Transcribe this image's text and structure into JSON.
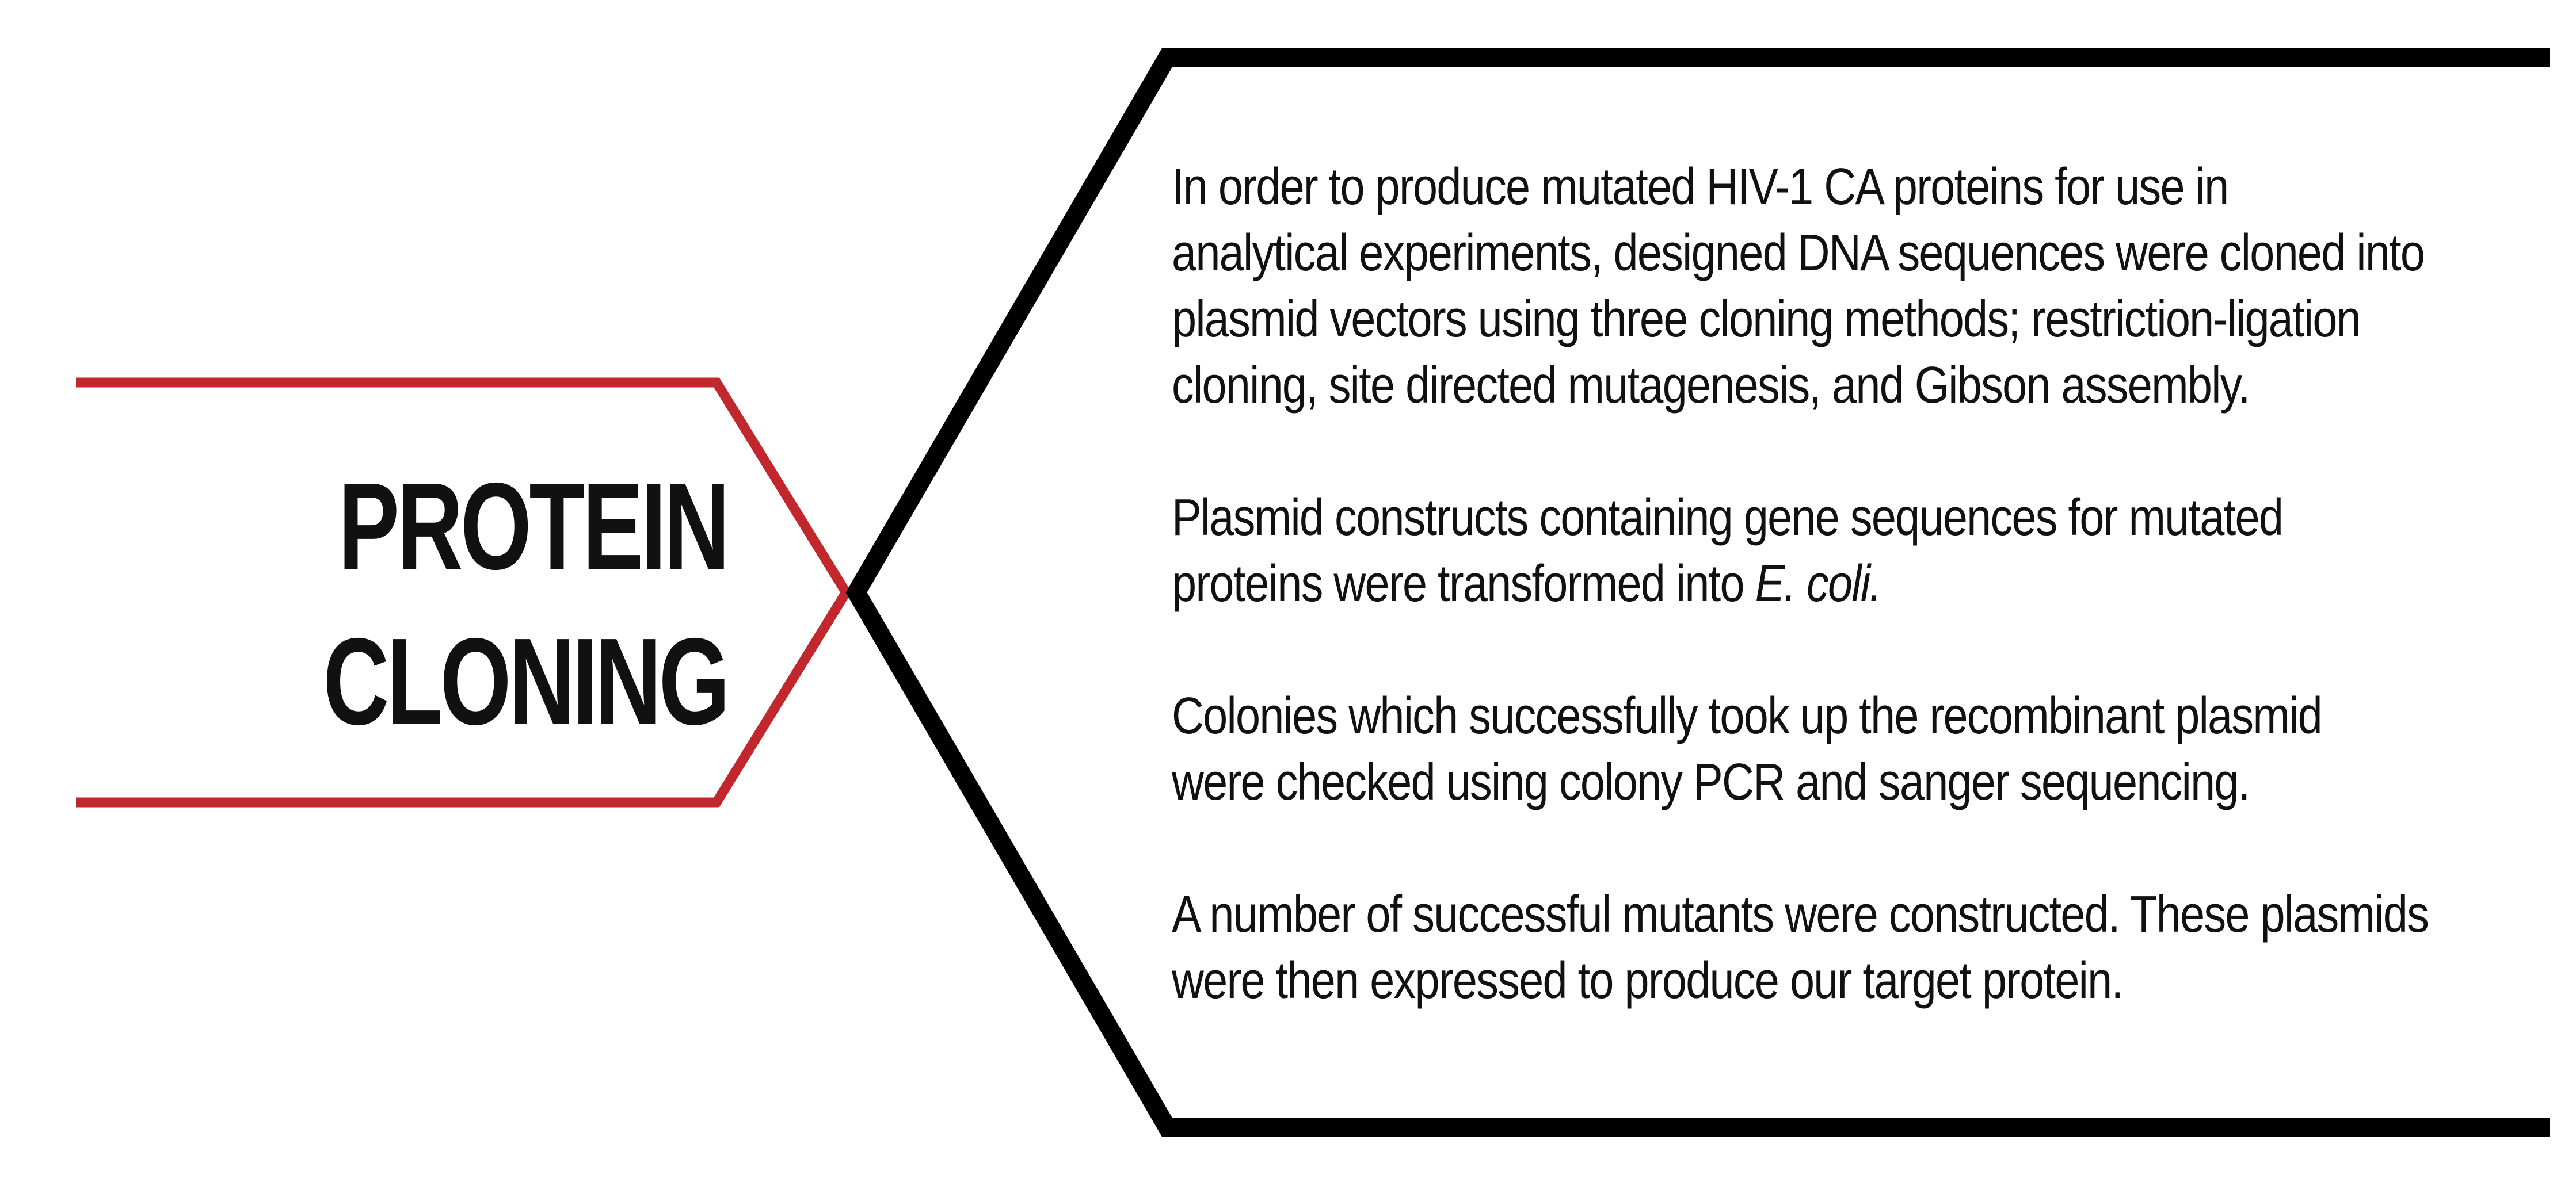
{
  "colors": {
    "accent": "#c1272d",
    "outline": "#000000",
    "text": "#111111",
    "background": "#ffffff"
  },
  "heading": {
    "line1": "PROTEIN",
    "line2": "CLONING"
  },
  "paragraphs": [
    {
      "line1": "In order to produce mutated HIV-1 CA proteins for use in",
      "line2": "analytical experiments, designed DNA sequences were cloned into",
      "line3": "plasmid vectors using three cloning methods; restriction-ligation",
      "line4": "cloning, site directed mutagenesis, and Gibson assembly."
    },
    {
      "line1": "Plasmid constructs containing gene sequences for mutated",
      "line2_prefix": "proteins were transformed into ",
      "line2_italic": "E. coli."
    },
    {
      "line1": "Colonies which successfully took up the recombinant plasmid",
      "line2": "were checked using colony PCR and sanger sequencing."
    },
    {
      "line1": "A number of successful mutants were constructed. These plasmids",
      "line2": "were then expressed to produce our target protein."
    }
  ]
}
